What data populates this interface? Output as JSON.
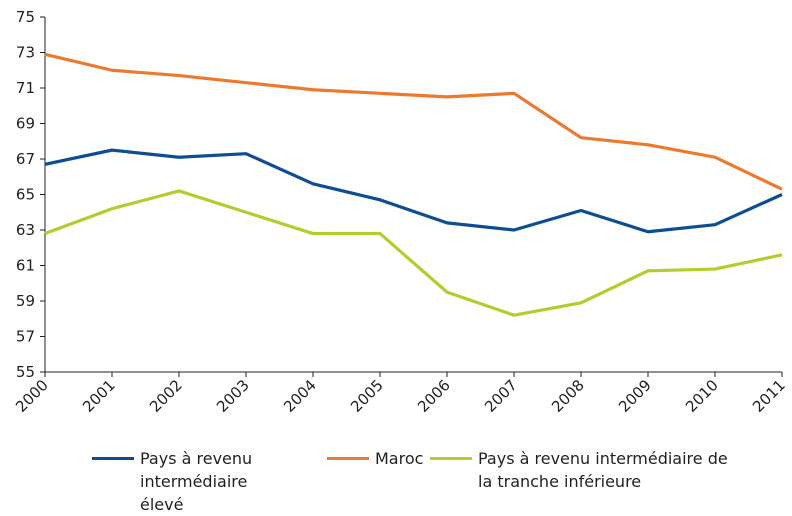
{
  "chart_data": {
    "type": "line",
    "x": [
      "2000",
      "2001",
      "2002",
      "2003",
      "2004",
      "2005",
      "2006",
      "2007",
      "2008",
      "2009",
      "2010",
      "2011"
    ],
    "series": [
      {
        "name": "Pays à revenu intermédiaire élevé",
        "color": "#0e4d92",
        "values": [
          66.7,
          67.5,
          67.1,
          67.3,
          65.6,
          64.7,
          63.4,
          63.0,
          64.1,
          62.9,
          63.3,
          65.0
        ]
      },
      {
        "name": "Maroc",
        "color": "#ec7a2e",
        "values": [
          72.9,
          72.0,
          71.7,
          71.3,
          70.9,
          70.7,
          70.5,
          70.7,
          68.2,
          67.8,
          67.1,
          65.3
        ]
      },
      {
        "name": "Pays à revenu intermédiaire de la tranche inférieure",
        "color": "#b5cc2e",
        "values": [
          62.8,
          64.2,
          65.2,
          64.0,
          62.8,
          62.8,
          59.5,
          58.2,
          58.9,
          60.7,
          60.8,
          61.6
        ]
      }
    ],
    "ylim": [
      55,
      75
    ],
    "yticks": [
      55,
      57,
      59,
      61,
      63,
      65,
      67,
      69,
      71,
      73,
      75
    ],
    "grid": false
  }
}
